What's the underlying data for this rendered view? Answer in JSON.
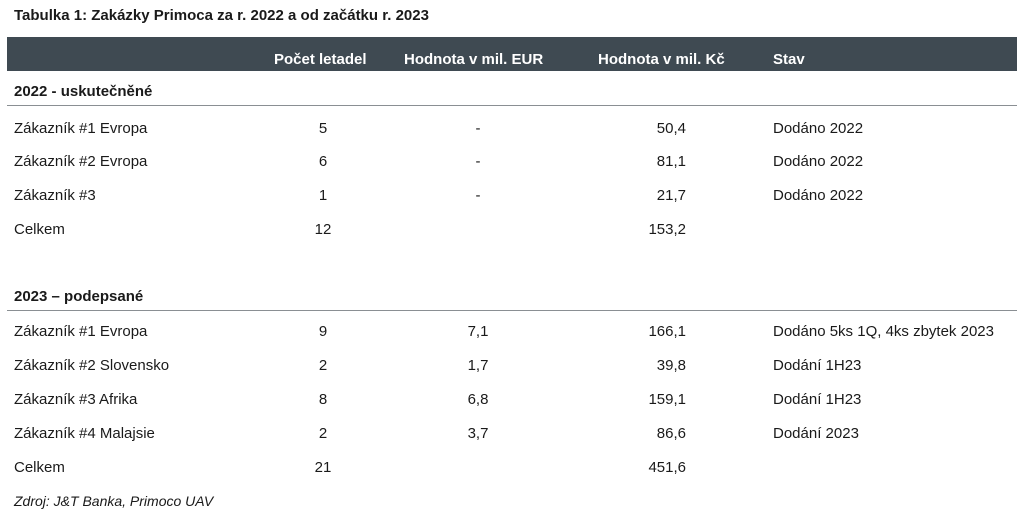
{
  "title": "Tabulka 1: Zakázky Primoca za r. 2022 a od začátku r. 2023",
  "header": {
    "count": "Počet letadel",
    "eur": "Hodnota v mil. EUR",
    "czk": "Hodnota v mil. Kč",
    "status": "Stav"
  },
  "sections": [
    {
      "title": "2022 - uskutečněné",
      "rows": [
        {
          "name": "Zákazník #1 Evropa",
          "count": "5",
          "eur": "-",
          "czk": "50,4",
          "status": "Dodáno 2022"
        },
        {
          "name": "Zákazník #2 Evropa",
          "count": "6",
          "eur": "-",
          "czk": "81,1",
          "status": "Dodáno 2022"
        },
        {
          "name": "Zákazník #3",
          "count": "1",
          "eur": "-",
          "czk": "21,7",
          "status": "Dodáno 2022"
        },
        {
          "name": "Celkem",
          "count": "12",
          "eur": "",
          "czk": "153,2",
          "status": ""
        }
      ]
    },
    {
      "title": "2023 – podepsané",
      "rows": [
        {
          "name": "Zákazník #1 Evropa",
          "count": "9",
          "eur": "7,1",
          "czk": "166,1",
          "status": "Dodáno 5ks 1Q, 4ks zbytek 2023"
        },
        {
          "name": "Zákazník #2 Slovensko",
          "count": "2",
          "eur": "1,7",
          "czk": "39,8",
          "status": "Dodání 1H23"
        },
        {
          "name": "Zákazník #3 Afrika",
          "count": "8",
          "eur": "6,8",
          "czk": "159,1",
          "status": "Dodání 1H23"
        },
        {
          "name": "Zákazník #4 Malajsie",
          "count": "2",
          "eur": "3,7",
          "czk": "86,6",
          "status": "Dodání 2023"
        },
        {
          "name": "Celkem",
          "count": "21",
          "eur": "",
          "czk": "451,6",
          "status": ""
        }
      ]
    }
  ],
  "source": "Zdroj: J&T Banka, Primoco UAV"
}
